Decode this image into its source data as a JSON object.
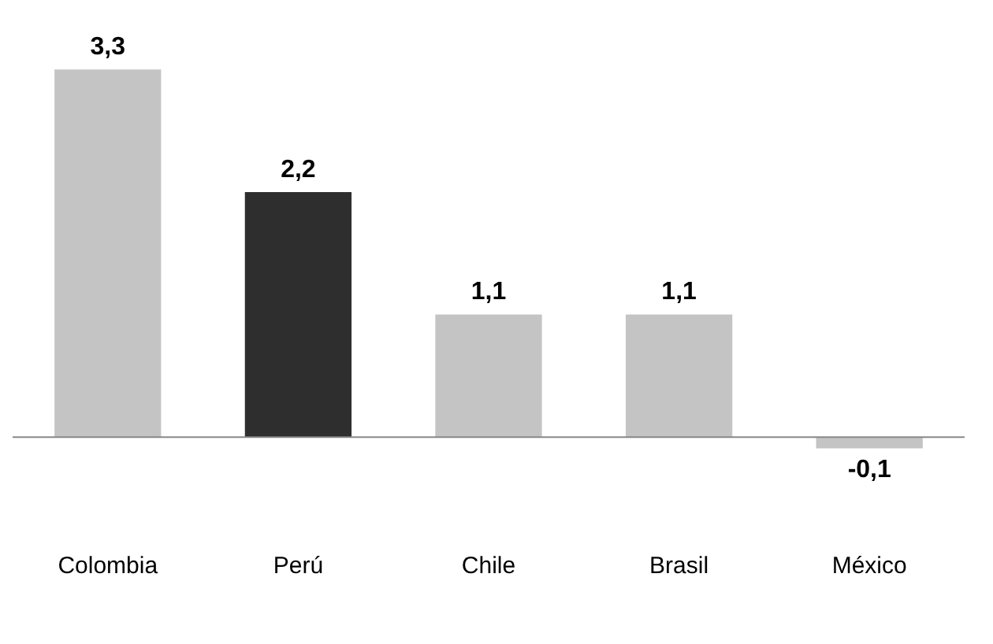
{
  "chart_data": {
    "type": "bar",
    "categories": [
      "Colombia",
      "Perú",
      "Chile",
      "Brasil",
      "México"
    ],
    "values": [
      3.3,
      2.2,
      1.1,
      1.1,
      -0.1
    ],
    "colors": [
      "#c4c4c4",
      "#2e2e2e",
      "#c4c4c4",
      "#c4c4c4",
      "#c4c4c4"
    ],
    "value_labels": [
      "3,3",
      "2,2",
      "1,1",
      "1,1",
      "-0,1"
    ],
    "grid": false,
    "legend": false
  }
}
